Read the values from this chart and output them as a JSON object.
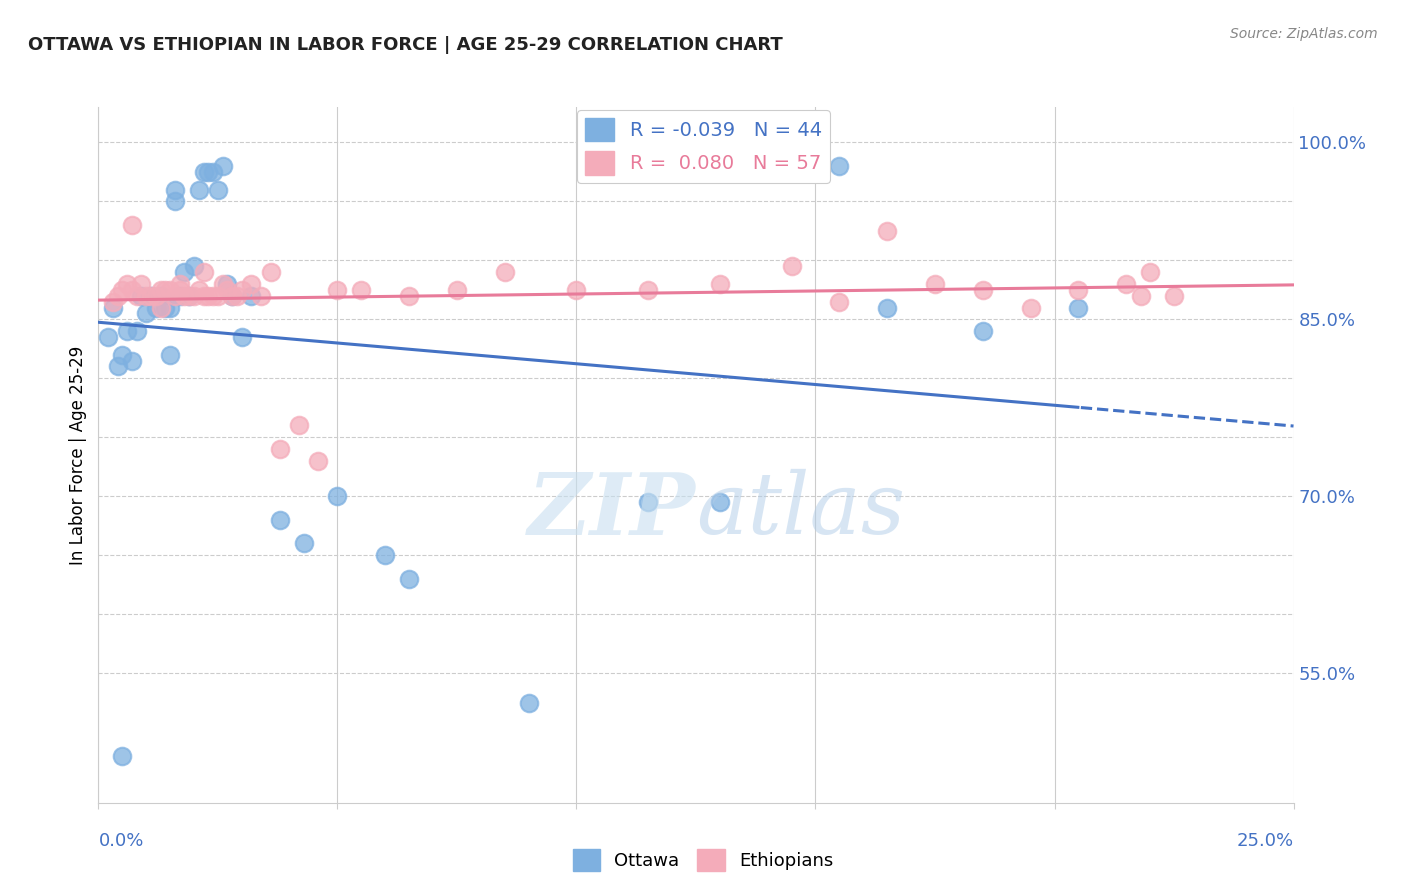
{
  "title": "OTTAWA VS ETHIOPIAN IN LABOR FORCE | AGE 25-29 CORRELATION CHART",
  "source": "Source: ZipAtlas.com",
  "ylabel": "In Labor Force | Age 25-29",
  "xlim": [
    0.0,
    0.25
  ],
  "ylim": [
    0.44,
    1.03
  ],
  "watermark_zip": "ZIP",
  "watermark_atlas": "atlas",
  "legend_r_ottawa": "-0.039",
  "legend_n_ottawa": "44",
  "legend_r_ethiopians": "0.080",
  "legend_n_ethiopians": "57",
  "color_ottawa": "#7EB0E0",
  "color_ethiopians": "#F4ACBA",
  "trendline_ottawa_color": "#4472C4",
  "trendline_ethiopians_color": "#E87B9A",
  "background_color": "#FFFFFF",
  "grid_color": "#CCCCCC",
  "axis_label_color": "#4472C4",
  "title_color": "#222222",
  "right_ytick_color": "#4472C4",
  "right_yticks": [
    0.55,
    0.7,
    0.85,
    1.0
  ],
  "right_ytick_labels": [
    "55.0%",
    "70.0%",
    "85.0%",
    "100.0%"
  ],
  "ottawa_x": [
    0.002,
    0.003,
    0.004,
    0.005,
    0.005,
    0.006,
    0.007,
    0.008,
    0.009,
    0.01,
    0.011,
    0.012,
    0.013,
    0.014,
    0.015,
    0.015,
    0.016,
    0.016,
    0.017,
    0.018,
    0.019,
    0.02,
    0.021,
    0.022,
    0.023,
    0.024,
    0.025,
    0.026,
    0.027,
    0.028,
    0.03,
    0.032,
    0.038,
    0.043,
    0.05,
    0.06,
    0.065,
    0.09,
    0.115,
    0.13,
    0.155,
    0.165,
    0.185,
    0.205
  ],
  "ottawa_y": [
    0.835,
    0.86,
    0.81,
    0.48,
    0.82,
    0.84,
    0.815,
    0.84,
    0.87,
    0.855,
    0.87,
    0.86,
    0.87,
    0.86,
    0.82,
    0.86,
    0.95,
    0.96,
    0.87,
    0.89,
    0.87,
    0.895,
    0.96,
    0.975,
    0.975,
    0.975,
    0.96,
    0.98,
    0.88,
    0.87,
    0.835,
    0.87,
    0.68,
    0.66,
    0.7,
    0.65,
    0.63,
    0.525,
    0.695,
    0.695,
    0.98,
    0.86,
    0.84,
    0.86
  ],
  "ethiopians_x": [
    0.003,
    0.004,
    0.005,
    0.006,
    0.007,
    0.007,
    0.008,
    0.009,
    0.01,
    0.011,
    0.012,
    0.013,
    0.013,
    0.014,
    0.015,
    0.016,
    0.017,
    0.017,
    0.018,
    0.019,
    0.02,
    0.021,
    0.022,
    0.022,
    0.023,
    0.024,
    0.025,
    0.026,
    0.027,
    0.028,
    0.029,
    0.03,
    0.032,
    0.034,
    0.036,
    0.038,
    0.042,
    0.046,
    0.05,
    0.055,
    0.065,
    0.075,
    0.085,
    0.1,
    0.115,
    0.13,
    0.145,
    0.155,
    0.165,
    0.175,
    0.185,
    0.195,
    0.205,
    0.215,
    0.218,
    0.22,
    0.225
  ],
  "ethiopians_y": [
    0.865,
    0.87,
    0.875,
    0.88,
    0.875,
    0.93,
    0.87,
    0.88,
    0.87,
    0.87,
    0.87,
    0.86,
    0.875,
    0.875,
    0.875,
    0.87,
    0.875,
    0.88,
    0.87,
    0.87,
    0.87,
    0.875,
    0.87,
    0.89,
    0.87,
    0.87,
    0.87,
    0.88,
    0.875,
    0.87,
    0.87,
    0.875,
    0.88,
    0.87,
    0.89,
    0.74,
    0.76,
    0.73,
    0.875,
    0.875,
    0.87,
    0.875,
    0.89,
    0.875,
    0.875,
    0.88,
    0.895,
    0.865,
    0.925,
    0.88,
    0.875,
    0.86,
    0.875,
    0.88,
    0.87,
    0.89,
    0.87
  ]
}
